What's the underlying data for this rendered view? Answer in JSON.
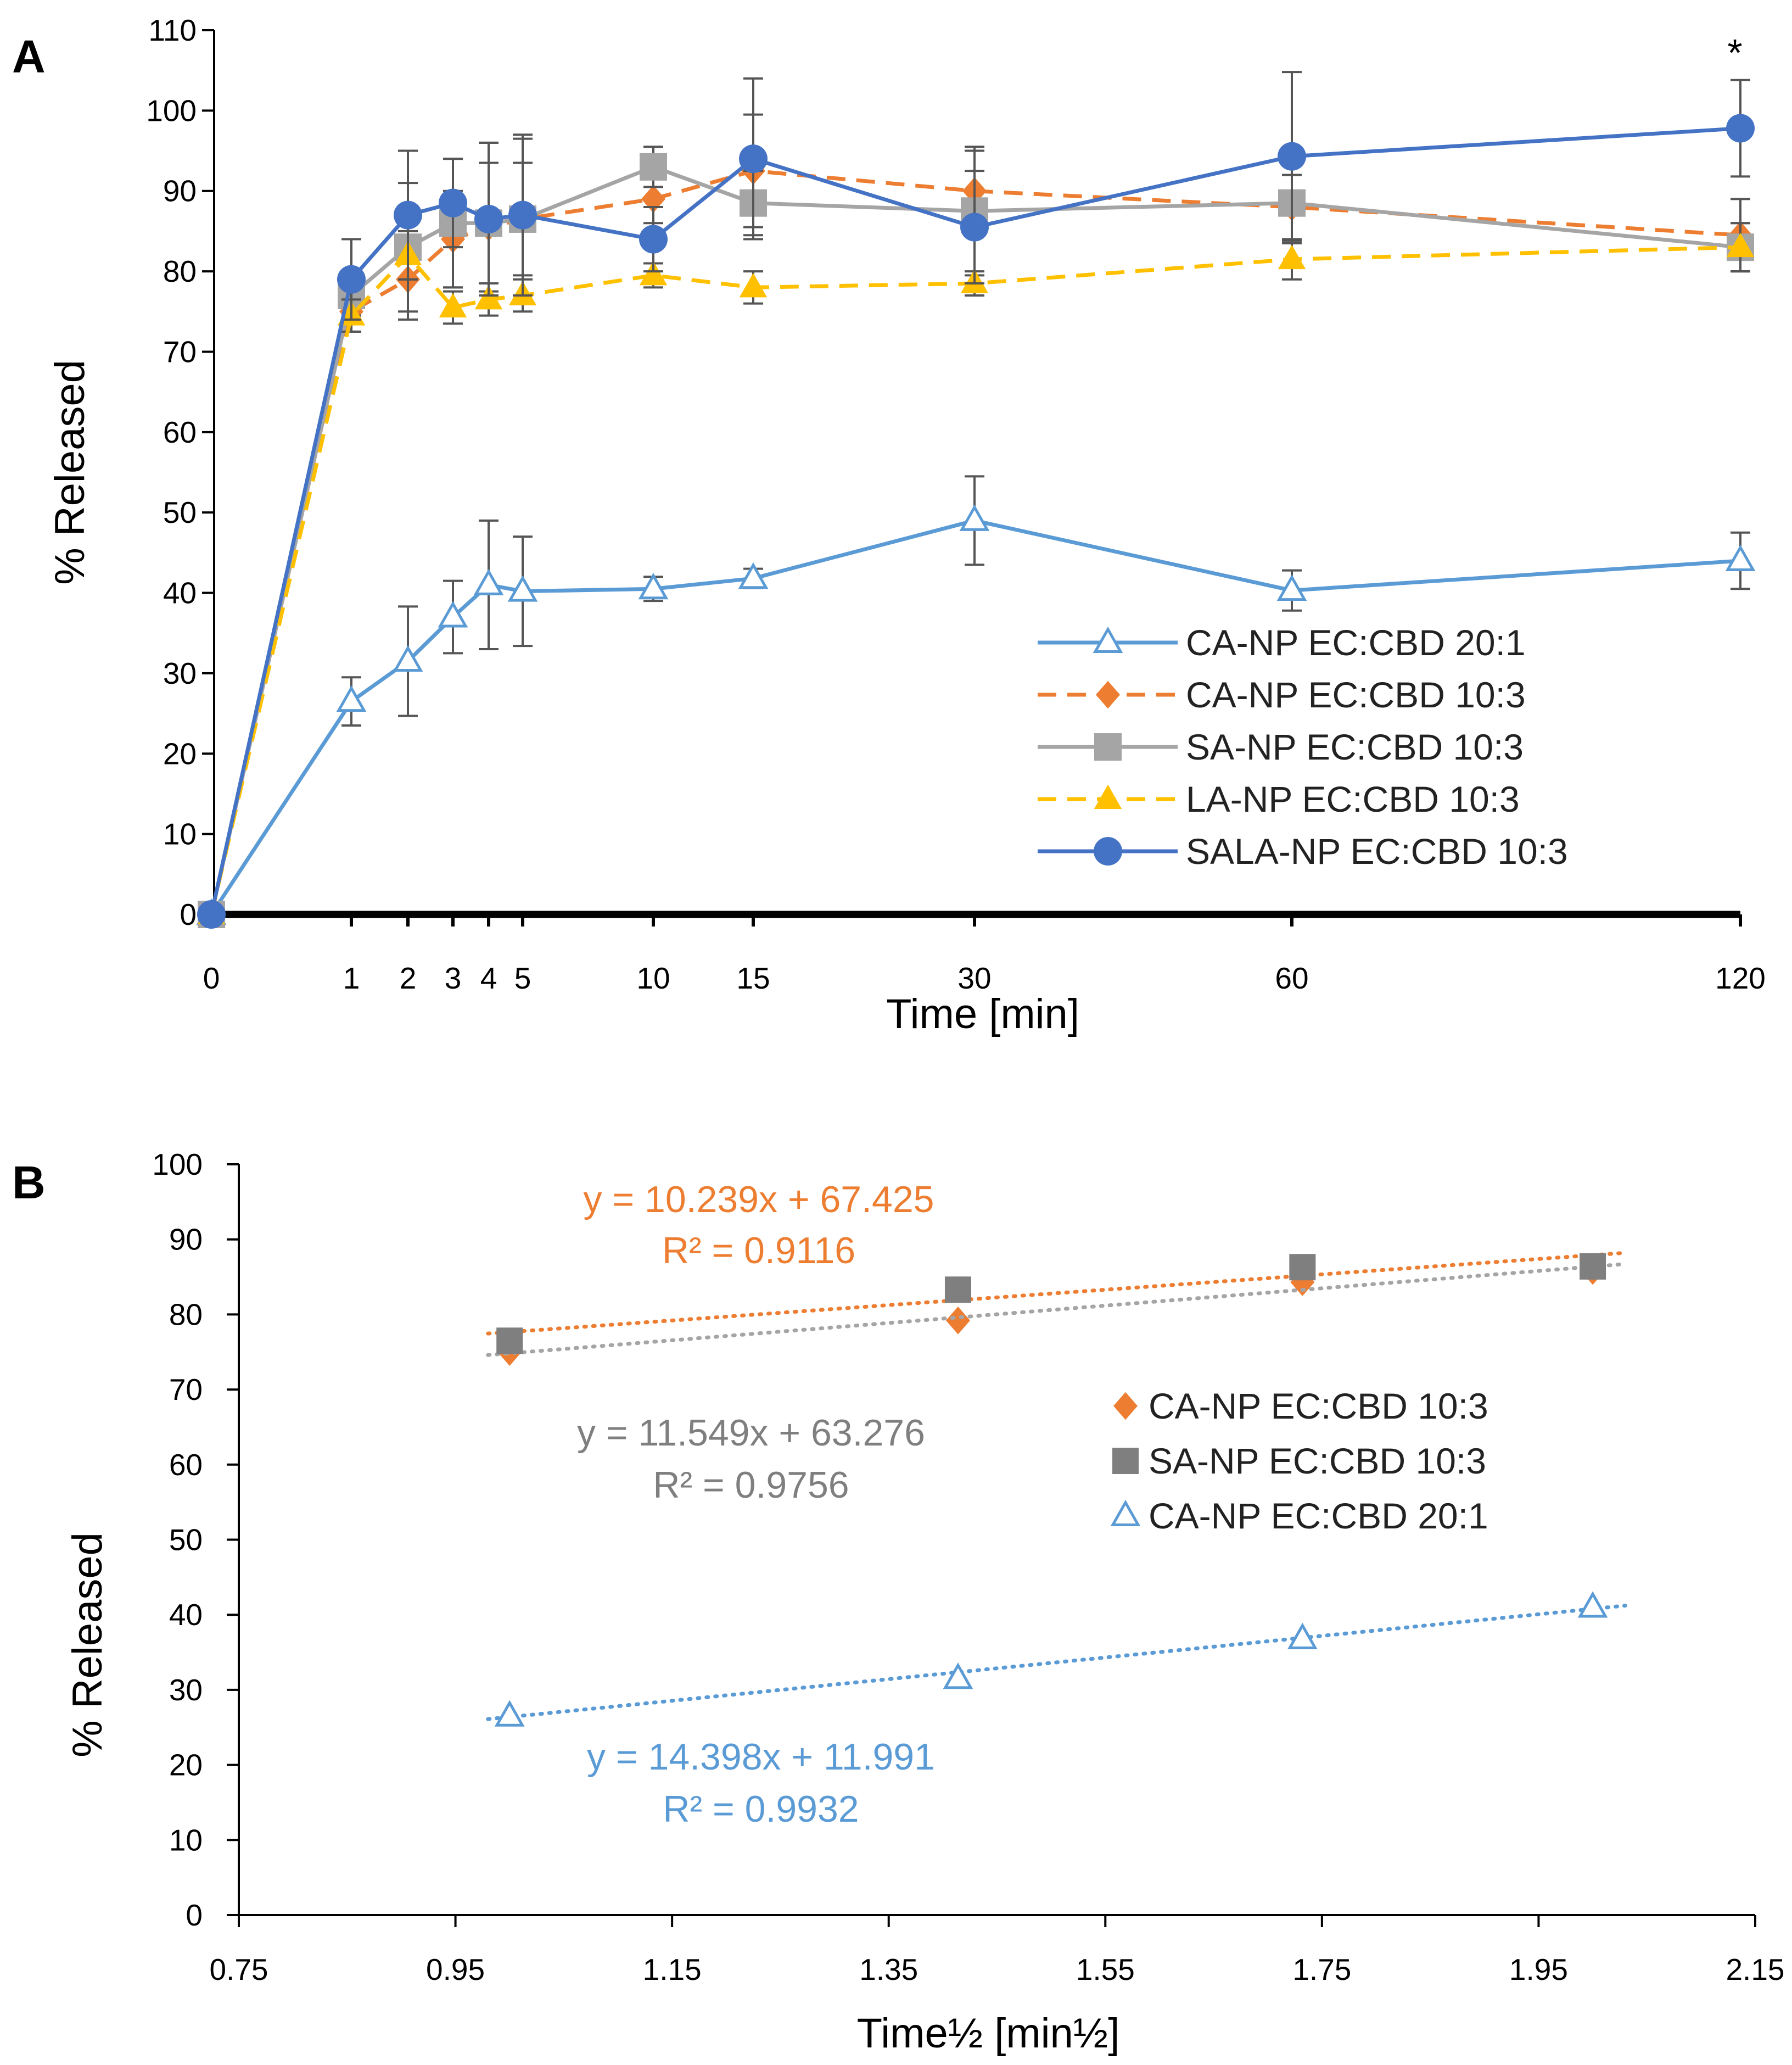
{
  "chart_data": [
    {
      "panel": "A",
      "type": "line",
      "xlabel": "Time [min]",
      "ylabel": "% Released",
      "x_tick_labels": [
        "0",
        "1",
        "2",
        "3",
        "4",
        "5",
        "10",
        "15",
        "30",
        "60",
        "120"
      ],
      "y_tick_labels": [
        "0",
        "10",
        "20",
        "30",
        "40",
        "50",
        "60",
        "70",
        "80",
        "90",
        "100",
        "110"
      ],
      "ylim": [
        0,
        110
      ],
      "annotation": "*",
      "series": [
        {
          "name": "CA-NP EC:CBD 20:1",
          "color": "#5B9BD5",
          "dash": "solid",
          "marker": "triangle-open",
          "values": [
            0,
            26.5,
            31.5,
            37,
            41,
            40.2,
            40.5,
            41.8,
            49,
            40.3,
            44
          ],
          "errors": [
            0,
            3,
            6.8,
            4.5,
            8,
            6.8,
            1.5,
            1.2,
            5.5,
            2.5,
            3.5
          ]
        },
        {
          "name": "CA-NP EC:CBD 10:3",
          "color": "#ED7D31",
          "dash": "dashed",
          "marker": "diamond",
          "values": [
            0,
            75,
            79,
            84,
            85.5,
            86.5,
            89,
            92.5,
            90,
            88,
            84.5
          ],
          "errors": [
            0,
            2.5,
            5,
            6,
            8,
            7,
            3,
            7,
            5,
            4,
            4.5
          ]
        },
        {
          "name": "SA-NP EC:CBD 10:3",
          "color": "#A5A5A5",
          "dash": "solid",
          "marker": "square",
          "values": [
            0,
            77,
            83,
            86,
            86,
            86.5,
            93,
            88.5,
            87.5,
            88.5,
            83
          ],
          "errors": [
            0,
            2.5,
            8,
            8,
            10,
            10,
            2.5,
            4,
            8,
            5,
            3
          ]
        },
        {
          "name": "LA-NP EC:CBD 10:3",
          "color": "#FFC000",
          "dash": "dashed",
          "marker": "triangle",
          "values": [
            0,
            74.5,
            82,
            75.5,
            76.5,
            77,
            79.5,
            78,
            78.5,
            81.5,
            83
          ],
          "errors": [
            0,
            2,
            3,
            2,
            2,
            2,
            1.5,
            2,
            1.5,
            2.5,
            3
          ]
        },
        {
          "name": "SALA-NP EC:CBD 10:3",
          "color": "#4472C4",
          "dash": "solid",
          "marker": "circle",
          "values": [
            0,
            79,
            87,
            88.5,
            86.5,
            87,
            84,
            94,
            85.5,
            94.3,
            97.8
          ],
          "errors": [
            0,
            5,
            8,
            5.5,
            9.5,
            10,
            4,
            10,
            7,
            10.5,
            6
          ]
        }
      ]
    },
    {
      "panel": "B",
      "type": "scatter",
      "xlabel": "Time½ [min½]",
      "ylabel": "% Released",
      "xlim": [
        0.75,
        2.15
      ],
      "ylim": [
        0,
        100
      ],
      "x_tick_labels": [
        "0.75",
        "0.95",
        "1.15",
        "1.35",
        "1.55",
        "1.75",
        "1.95",
        "2.15"
      ],
      "y_tick_labels": [
        "0",
        "10",
        "20",
        "30",
        "40",
        "50",
        "60",
        "70",
        "80",
        "90",
        "100"
      ],
      "series": [
        {
          "name": "CA-NP EC:CBD 10:3",
          "color": "#ED7D31",
          "marker": "diamond",
          "x": [
            1,
            1.414,
            1.732,
            2
          ],
          "y": [
            75,
            79.2,
            84.3,
            85.8
          ],
          "trend_slope": 10.239,
          "trend_intercept": 67.425,
          "equation": "y = 10.239x + 67.425",
          "r2": "R² = 0.9116"
        },
        {
          "name": "SA-NP EC:CBD 10:3",
          "color": "#7F7F7F",
          "trend_color": "#A5A5A5",
          "marker": "square",
          "x": [
            1,
            1.414,
            1.732,
            2
          ],
          "y": [
            76.5,
            83.3,
            86.3,
            86.4
          ],
          "trend_slope": 11.549,
          "trend_intercept": 63.276,
          "equation": "y = 11.549x + 63.276",
          "r2": "R² = 0.9756"
        },
        {
          "name": "CA-NP EC:CBD 20:1",
          "color": "#5B9BD5",
          "marker": "triangle-open",
          "x": [
            1,
            1.414,
            1.732,
            2
          ],
          "y": [
            26.5,
            31.5,
            36.8,
            41
          ],
          "trend_slope": 14.398,
          "trend_intercept": 11.991,
          "equation": "y = 14.398x + 11.991",
          "r2": "R² = 0.9932"
        }
      ]
    }
  ]
}
